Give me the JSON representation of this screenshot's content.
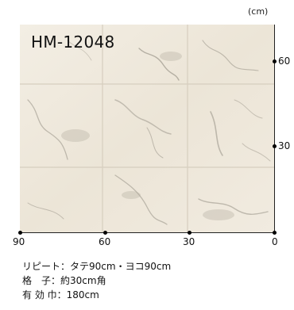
{
  "unit_label": "(cm)",
  "product_code": "HM-12048",
  "x_axis_ticks": [
    "90",
    "60",
    "30",
    "0"
  ],
  "y_axis_ticks": [
    "60",
    "30"
  ],
  "specs": [
    {
      "label": "リピート",
      "value": "タテ90cm・ヨコ90cm"
    },
    {
      "label": "格　子",
      "value": "約30cm角"
    },
    {
      "label": "有 効 巾",
      "value": "180cm"
    }
  ],
  "colors": {
    "tile_base": "#efe9dd",
    "vein": "#9a948a",
    "grout": "#d8d0c2"
  }
}
